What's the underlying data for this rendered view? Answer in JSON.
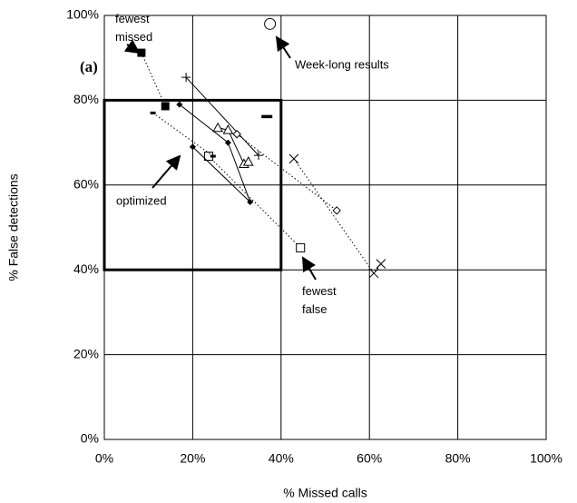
{
  "chart_data": {
    "type": "scatter",
    "x_label": "% Missed calls",
    "y_label": "% False detections",
    "xlim": [
      0,
      100
    ],
    "ylim": [
      0,
      100
    ],
    "xticks": [
      {
        "value": 0,
        "label": "0%"
      },
      {
        "value": 20,
        "label": "20%"
      },
      {
        "value": 40,
        "label": "40%"
      },
      {
        "value": 60,
        "label": "60%"
      },
      {
        "value": 80,
        "label": "80%"
      },
      {
        "value": 100,
        "label": "100%"
      }
    ],
    "yticks": [
      {
        "value": 0,
        "label": "0%"
      },
      {
        "value": 20,
        "label": "20%"
      },
      {
        "value": 40,
        "label": "40%"
      },
      {
        "value": 60,
        "label": "60%"
      },
      {
        "value": 80,
        "label": "80%"
      },
      {
        "value": 100,
        "label": "100%"
      }
    ],
    "grid": true,
    "box": {
      "x": [
        0,
        40
      ],
      "y": [
        40,
        80
      ]
    },
    "annotations": [
      "(a)",
      "fewest\nmissed",
      "Week-long results",
      "optimized",
      "fewest\nfalse"
    ],
    "series": [
      {
        "marker": "square-filled",
        "line": "dotted",
        "color": "#000",
        "x": [
          8.4,
          13.8
        ],
        "values": [
          91.2,
          78.6
        ]
      },
      {
        "marker": "square-open",
        "line": "dotted",
        "color": "#000",
        "x": [
          23.6,
          44.4
        ],
        "values": [
          66.8,
          45.2
        ]
      },
      {
        "marker": "diamond-filled",
        "line": "solid",
        "color": "#000",
        "x": [
          17,
          28,
          33,
          20
        ],
        "values": [
          79,
          70,
          56,
          69
        ]
      },
      {
        "marker": "triangle-open",
        "line": "solid",
        "color": "#000",
        "x": [
          25.7,
          28,
          31.6,
          32.6
        ],
        "values": [
          73.5,
          73,
          65,
          65.5
        ]
      },
      {
        "marker": "plus",
        "line": "solid",
        "color": "#000",
        "x": [
          18.5,
          34.9
        ],
        "values": [
          85.4,
          67
        ]
      },
      {
        "marker": "diamond-open",
        "line": "dotted",
        "color": "#000",
        "x": [
          30,
          52.6
        ],
        "values": [
          72,
          54
        ]
      },
      {
        "marker": "cross",
        "line": "dotted",
        "color": "#000",
        "x": [
          42.9,
          61,
          62.6
        ],
        "values": [
          66.2,
          39.2,
          41.4
        ]
      },
      {
        "marker": "dash",
        "line": "dotted",
        "color": "#000",
        "x": [
          11,
          24.6
        ],
        "values": [
          77,
          66.8
        ]
      },
      {
        "marker": "circle",
        "line": "none",
        "color": "#000",
        "x": [
          37.5
        ],
        "values": [
          98
        ]
      },
      {
        "marker": "bar",
        "line": "none",
        "color": "#000",
        "x": [
          36.8
        ],
        "values": [
          76.2
        ]
      }
    ]
  }
}
